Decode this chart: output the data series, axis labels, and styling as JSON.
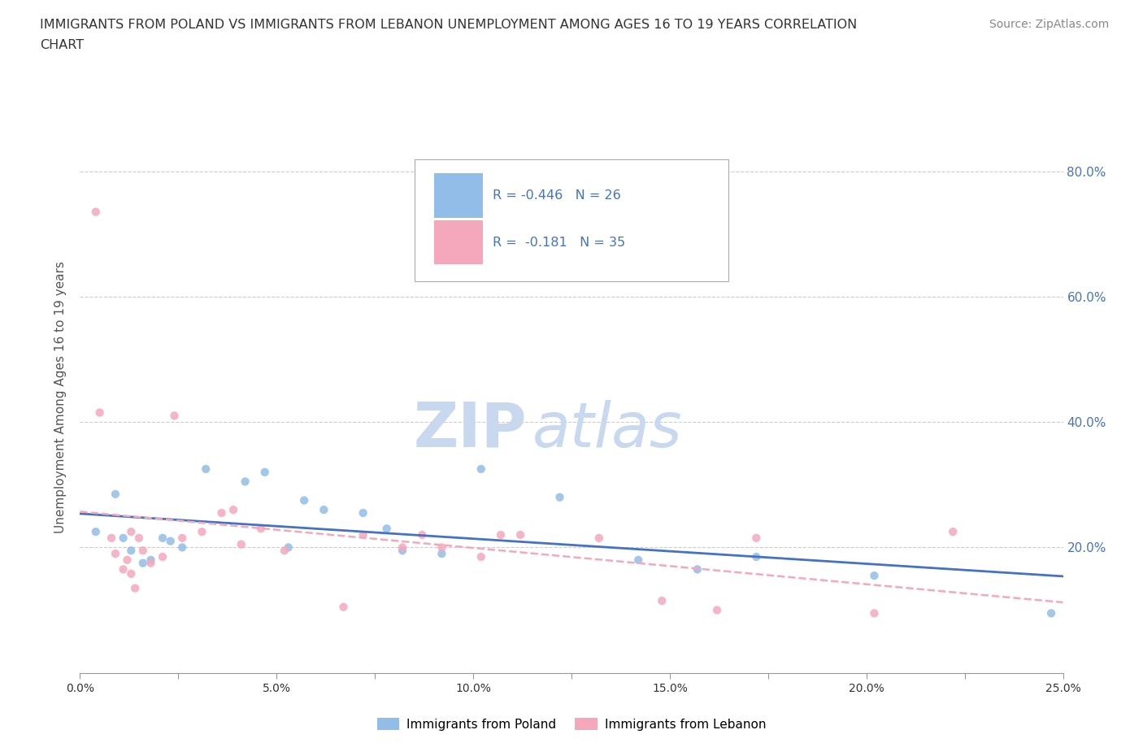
{
  "title_line1": "IMMIGRANTS FROM POLAND VS IMMIGRANTS FROM LEBANON UNEMPLOYMENT AMONG AGES 16 TO 19 YEARS CORRELATION",
  "title_line2": "CHART",
  "source_text": "Source: ZipAtlas.com",
  "ylabel": "Unemployment Among Ages 16 to 19 years",
  "xlim": [
    0.0,
    0.25
  ],
  "ylim": [
    0.0,
    0.88
  ],
  "xtick_labels": [
    "0.0%",
    "",
    "5.0%",
    "",
    "10.0%",
    "",
    "15.0%",
    "",
    "20.0%",
    "",
    "25.0%"
  ],
  "xtick_vals": [
    0.0,
    0.025,
    0.05,
    0.075,
    0.1,
    0.125,
    0.15,
    0.175,
    0.2,
    0.225,
    0.25
  ],
  "ytick_vals": [
    0.2,
    0.4,
    0.6,
    0.8
  ],
  "ytick_labels_right": [
    "20.0%",
    "40.0%",
    "60.0%",
    "80.0%"
  ],
  "poland_color": "#92bde8",
  "lebanon_color": "#f5a8bc",
  "poland_line_color": "#4472c4",
  "lebanon_line_color": "#f5a8bc",
  "r_poland": "-0.446",
  "n_poland": "26",
  "r_lebanon": "-0.181",
  "n_lebanon": "35",
  "background_color": "#ffffff",
  "grid_color": "#cccccc",
  "poland_x": [
    0.004,
    0.009,
    0.011,
    0.013,
    0.016,
    0.018,
    0.021,
    0.023,
    0.026,
    0.032,
    0.042,
    0.047,
    0.053,
    0.057,
    0.062,
    0.072,
    0.078,
    0.082,
    0.092,
    0.102,
    0.122,
    0.142,
    0.157,
    0.172,
    0.202,
    0.247
  ],
  "poland_y": [
    0.225,
    0.285,
    0.215,
    0.195,
    0.175,
    0.18,
    0.215,
    0.21,
    0.2,
    0.325,
    0.305,
    0.32,
    0.2,
    0.275,
    0.26,
    0.255,
    0.23,
    0.195,
    0.19,
    0.325,
    0.28,
    0.18,
    0.165,
    0.185,
    0.155,
    0.095
  ],
  "lebanon_x": [
    0.004,
    0.005,
    0.008,
    0.009,
    0.011,
    0.012,
    0.013,
    0.013,
    0.014,
    0.015,
    0.016,
    0.018,
    0.021,
    0.024,
    0.026,
    0.031,
    0.036,
    0.039,
    0.041,
    0.046,
    0.052,
    0.067,
    0.072,
    0.082,
    0.087,
    0.092,
    0.102,
    0.107,
    0.112,
    0.132,
    0.148,
    0.162,
    0.172,
    0.202,
    0.222
  ],
  "lebanon_y": [
    0.735,
    0.415,
    0.215,
    0.19,
    0.165,
    0.18,
    0.225,
    0.158,
    0.135,
    0.215,
    0.195,
    0.175,
    0.185,
    0.41,
    0.215,
    0.225,
    0.255,
    0.26,
    0.205,
    0.23,
    0.195,
    0.105,
    0.22,
    0.2,
    0.22,
    0.2,
    0.185,
    0.22,
    0.22,
    0.215,
    0.115,
    0.1,
    0.215,
    0.095,
    0.225
  ],
  "legend_poland_label": "Immigrants from Poland",
  "legend_lebanon_label": "Immigrants from Lebanon"
}
